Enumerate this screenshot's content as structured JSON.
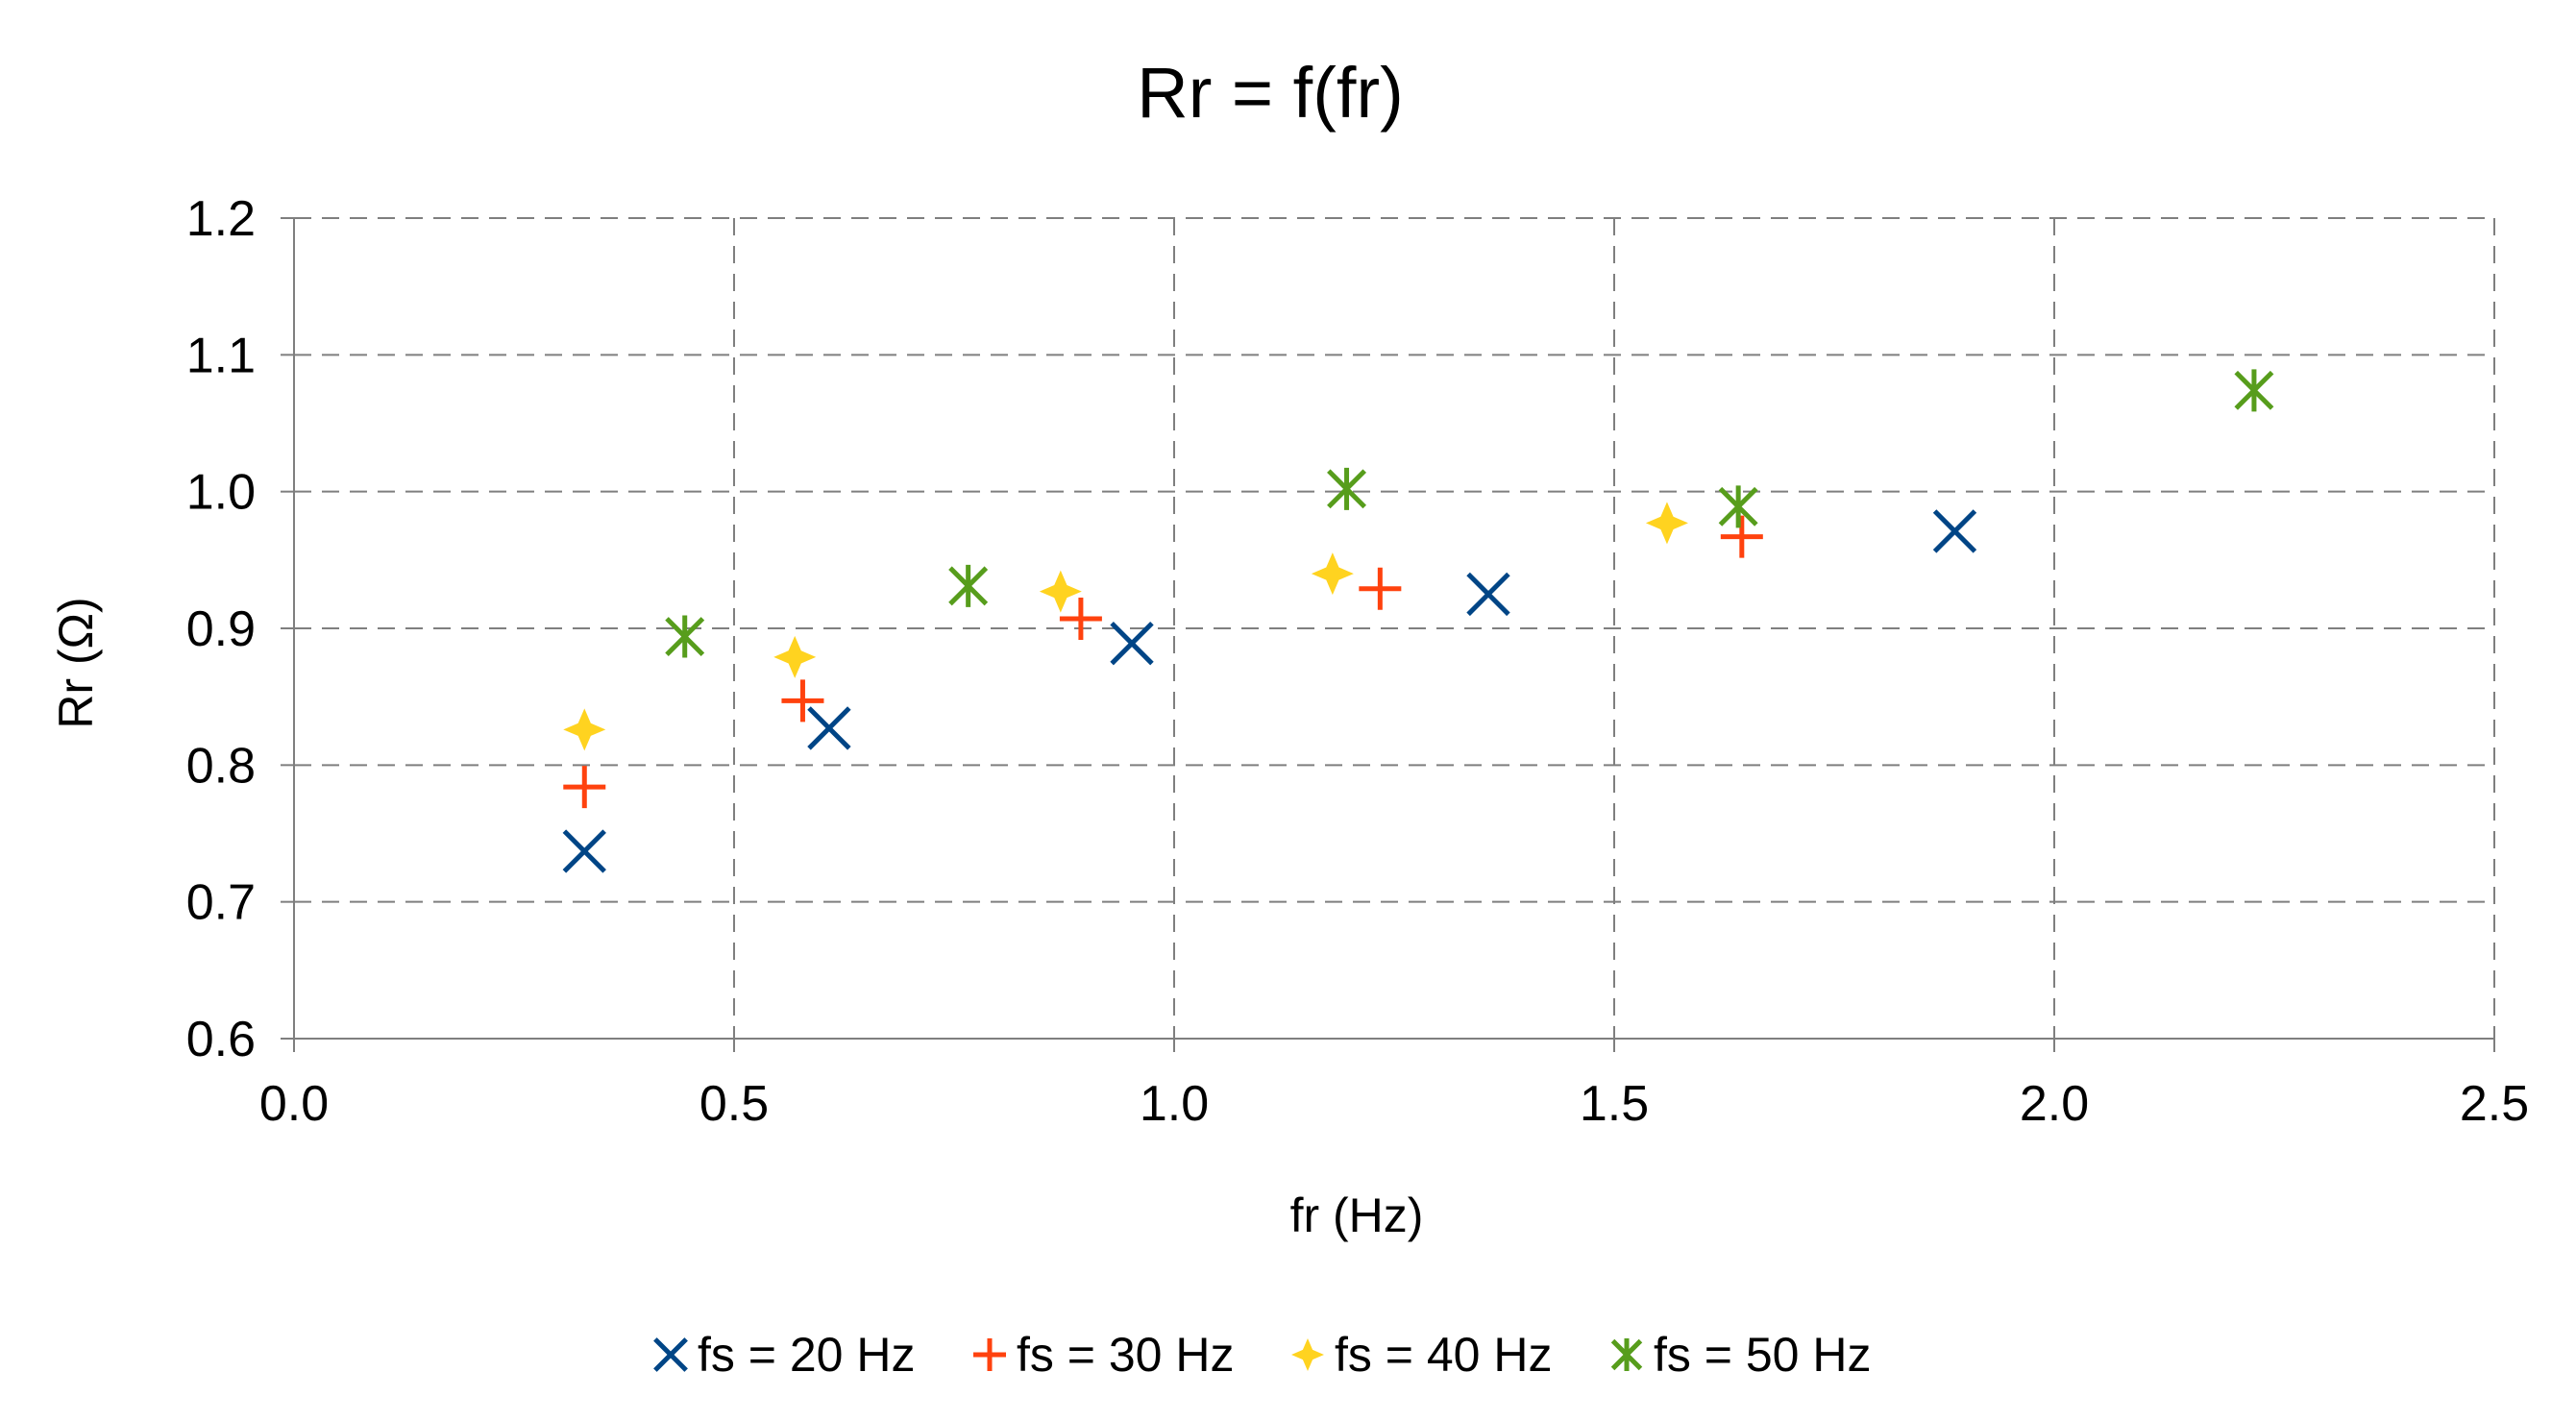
{
  "chart_data": {
    "type": "scatter",
    "title": "Rr = f(fr)",
    "xlabel": "fr (Hz)",
    "ylabel": "Rr (Ω)",
    "xlim": [
      0.0,
      2.5
    ],
    "ylim": [
      0.6,
      1.2
    ],
    "x_ticks": [
      "0.0",
      "0.5",
      "1.0",
      "1.5",
      "2.0",
      "2.5"
    ],
    "y_ticks": [
      "0.6",
      "0.7",
      "0.8",
      "0.9",
      "1.0",
      "1.1",
      "1.2"
    ],
    "grid": true,
    "legend_position": "bottom",
    "series": [
      {
        "name": "fs = 20 Hz",
        "marker": "x",
        "color": "#004586",
        "points": [
          [
            0.33,
            0.737
          ],
          [
            0.608,
            0.827
          ],
          [
            0.952,
            0.889
          ],
          [
            1.357,
            0.925
          ],
          [
            1.887,
            0.971
          ]
        ]
      },
      {
        "name": "fs = 30 Hz",
        "marker": "plus",
        "color": "#ff420e",
        "points": [
          [
            0.33,
            0.784
          ],
          [
            0.578,
            0.847
          ],
          [
            0.894,
            0.907
          ],
          [
            1.234,
            0.929
          ],
          [
            1.645,
            0.967
          ]
        ]
      },
      {
        "name": "fs = 40 Hz",
        "marker": "star4",
        "color": "#ffd320",
        "points": [
          [
            0.33,
            0.826
          ],
          [
            0.569,
            0.879
          ],
          [
            0.871,
            0.927
          ],
          [
            1.18,
            0.94
          ],
          [
            1.56,
            0.977
          ]
        ]
      },
      {
        "name": "fs = 50 Hz",
        "marker": "asterisk",
        "color": "#579d1c",
        "points": [
          [
            0.444,
            0.894
          ],
          [
            0.766,
            0.931
          ],
          [
            1.196,
            1.002
          ],
          [
            1.641,
            0.989
          ],
          [
            2.227,
            1.074
          ]
        ]
      }
    ]
  }
}
